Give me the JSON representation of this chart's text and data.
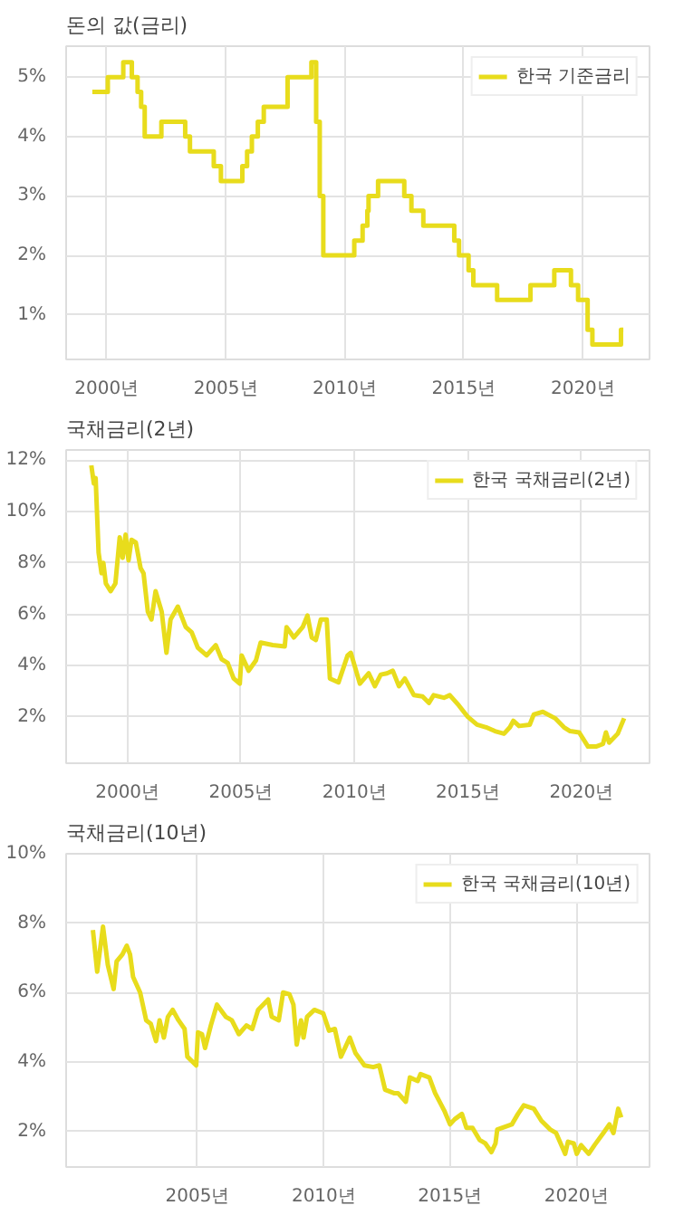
{
  "chart_data": [
    {
      "type": "step",
      "title": "돈의 값(금리)",
      "legend": "top right",
      "grid": true,
      "marker": "none",
      "line_style": "solid",
      "xlim": [
        1998.3,
        2022.8
      ],
      "ylim": [
        0.25,
        5.52
      ],
      "xticks": [
        {
          "value": 2000,
          "label": "2000년"
        },
        {
          "value": 2005,
          "label": "2005년"
        },
        {
          "value": 2010,
          "label": "2010년"
        },
        {
          "value": 2015,
          "label": "2015년"
        },
        {
          "value": 2020,
          "label": "2020년"
        }
      ],
      "yticks": [
        {
          "value": 1,
          "label": "1%"
        },
        {
          "value": 2,
          "label": "2%"
        },
        {
          "value": 3,
          "label": "3%"
        },
        {
          "value": 4,
          "label": "4%"
        },
        {
          "value": 5,
          "label": "5%"
        }
      ],
      "series": [
        {
          "name": "한국 기준금리",
          "color": "#e8dc1c",
          "x": [
            1999.4,
            2000.05,
            2000.7,
            2001.06,
            2001.3,
            2001.45,
            2001.6,
            2002.3,
            2003.3,
            2003.5,
            2004.5,
            2004.8,
            2005.7,
            2005.9,
            2006.1,
            2006.35,
            2006.6,
            2007.6,
            2008.6,
            2008.8,
            2008.95,
            2009.1,
            2010.4,
            2010.75,
            2010.95,
            2011.0,
            2011.4,
            2012.5,
            2012.8,
            2013.3,
            2014.6,
            2014.8,
            2015.2,
            2015.4,
            2016.4,
            2017.8,
            2018.8,
            2019.5,
            2019.8,
            2020.2,
            2020.4,
            2021.6,
            2021.7
          ],
          "values": [
            4.75,
            5.0,
            5.25,
            5.0,
            4.75,
            4.5,
            4.0,
            4.25,
            4.0,
            3.75,
            3.5,
            3.25,
            3.5,
            3.75,
            4.0,
            4.25,
            4.5,
            5.0,
            5.25,
            4.25,
            3.0,
            2.0,
            2.25,
            2.5,
            2.75,
            3.0,
            3.25,
            3.0,
            2.75,
            2.5,
            2.25,
            2.0,
            1.75,
            1.5,
            1.25,
            1.5,
            1.75,
            1.5,
            1.25,
            0.75,
            0.5,
            0.75,
            0.75
          ]
        }
      ]
    },
    {
      "type": "line",
      "title": "국채금리(2년)",
      "legend": "top right",
      "grid": true,
      "marker": "none",
      "line_style": "solid",
      "xlim": [
        1997.3,
        2023.0
      ],
      "ylim": [
        0.2,
        12.4
      ],
      "xticks": [
        {
          "value": 2000,
          "label": "2000년"
        },
        {
          "value": 2005,
          "label": "2005년"
        },
        {
          "value": 2010,
          "label": "2010년"
        },
        {
          "value": 2015,
          "label": "2015년"
        },
        {
          "value": 2020,
          "label": "2020년"
        }
      ],
      "yticks": [
        {
          "value": 2,
          "label": "2%"
        },
        {
          "value": 4,
          "label": "4%"
        },
        {
          "value": 6,
          "label": "6%"
        },
        {
          "value": 8,
          "label": "8%"
        },
        {
          "value": 10,
          "label": "10%"
        },
        {
          "value": 12,
          "label": "12%"
        }
      ],
      "series": [
        {
          "name": "한국 국채금리(2년)",
          "color": "#e8dc1c",
          "x": [
            1998.41,
            1998.52,
            1998.6,
            1998.73,
            1998.86,
            1998.94,
            1999.05,
            1999.26,
            1999.47,
            1999.66,
            1999.79,
            1999.92,
            2000.05,
            2000.18,
            2000.37,
            2000.58,
            2000.71,
            2000.9,
            2001.06,
            2001.24,
            2001.51,
            2001.72,
            2001.9,
            2002.22,
            2002.57,
            2002.83,
            2003.1,
            2003.49,
            2003.89,
            2004.15,
            2004.42,
            2004.68,
            2004.95,
            2005.03,
            2005.34,
            2005.66,
            2005.87,
            2006.4,
            2006.93,
            2007.01,
            2007.33,
            2007.72,
            2007.93,
            2008.12,
            2008.3,
            2008.52,
            2008.78,
            2008.92,
            2009.3,
            2009.7,
            2009.84,
            2010.24,
            2010.63,
            2010.9,
            2011.16,
            2011.43,
            2011.69,
            2011.96,
            2012.22,
            2012.62,
            2013.0,
            2013.28,
            2013.49,
            2013.94,
            2014.2,
            2014.6,
            2015.0,
            2015.4,
            2015.8,
            2016.19,
            2016.59,
            2016.85,
            2017.0,
            2017.25,
            2017.72,
            2017.9,
            2018.3,
            2018.84,
            2019.23,
            2019.5,
            2019.9,
            2020.29,
            2020.64,
            2020.95,
            2021.08,
            2021.22,
            2021.6,
            2021.88
          ],
          "values": [
            11.8,
            11.1,
            11.3,
            8.4,
            7.6,
            8.0,
            7.2,
            6.9,
            7.2,
            9.0,
            8.2,
            9.1,
            8.1,
            8.9,
            8.8,
            7.8,
            7.6,
            6.1,
            5.8,
            6.9,
            6.1,
            4.5,
            5.8,
            6.3,
            5.5,
            5.3,
            4.7,
            4.4,
            4.8,
            4.25,
            4.1,
            3.5,
            3.3,
            4.4,
            3.8,
            4.2,
            4.9,
            4.8,
            4.75,
            5.5,
            5.1,
            5.5,
            5.95,
            5.1,
            5.0,
            5.8,
            5.8,
            3.5,
            3.35,
            4.4,
            4.5,
            3.3,
            3.7,
            3.2,
            3.65,
            3.7,
            3.8,
            3.2,
            3.5,
            2.85,
            2.8,
            2.55,
            2.85,
            2.75,
            2.85,
            2.45,
            2.0,
            1.7,
            1.6,
            1.45,
            1.35,
            1.6,
            1.85,
            1.65,
            1.7,
            2.1,
            2.2,
            1.95,
            1.6,
            1.45,
            1.4,
            0.85,
            0.85,
            0.95,
            1.4,
            1.0,
            1.35,
            1.95
          ]
        }
      ]
    },
    {
      "type": "line",
      "title": "국채금리(10년)",
      "legend": "top right",
      "grid": true,
      "marker": "none",
      "line_style": "solid",
      "xlim": [
        1999.8,
        2022.9
      ],
      "ylim": [
        0.97,
        10.0
      ],
      "xticks": [
        {
          "value": 2005,
          "label": "2005년"
        },
        {
          "value": 2010,
          "label": "2010년"
        },
        {
          "value": 2015,
          "label": "2015년"
        },
        {
          "value": 2020,
          "label": "2020년"
        }
      ],
      "yticks": [
        {
          "value": 2,
          "label": "2%"
        },
        {
          "value": 4,
          "label": "4%"
        },
        {
          "value": 6,
          "label": "6%"
        },
        {
          "value": 8,
          "label": "8%"
        },
        {
          "value": 10,
          "label": "10%"
        }
      ],
      "series": [
        {
          "name": "한국 국채금리(10년)",
          "color": "#e8dc1c",
          "x": [
            2000.86,
            2001.03,
            2001.26,
            2001.45,
            2001.68,
            2001.8,
            2002.03,
            2002.2,
            2002.33,
            2002.45,
            2002.73,
            2002.97,
            2003.15,
            2003.36,
            2003.5,
            2003.67,
            2003.83,
            2004.02,
            2004.25,
            2004.49,
            2004.6,
            2004.95,
            2005.02,
            2005.18,
            2005.3,
            2005.53,
            2005.77,
            2006.12,
            2006.36,
            2006.64,
            2006.94,
            2007.17,
            2007.4,
            2007.8,
            2007.94,
            2008.22,
            2008.39,
            2008.64,
            2008.8,
            2008.93,
            2009.1,
            2009.2,
            2009.34,
            2009.63,
            2009.98,
            2010.21,
            2010.44,
            2010.68,
            2010.84,
            2011.03,
            2011.26,
            2011.61,
            2011.96,
            2012.2,
            2012.43,
            2012.78,
            2012.94,
            2013.25,
            2013.41,
            2013.72,
            2013.83,
            2014.18,
            2014.41,
            2014.77,
            2015.0,
            2015.19,
            2015.47,
            2015.65,
            2015.89,
            2016.17,
            2016.4,
            2016.64,
            2016.8,
            2016.87,
            2017.45,
            2017.69,
            2017.92,
            2018.32,
            2018.62,
            2018.97,
            2019.2,
            2019.56,
            2019.67,
            2019.9,
            2020.02,
            2020.19,
            2020.49,
            2020.72,
            2021.07,
            2021.31,
            2021.47,
            2021.66,
            2021.78
          ],
          "values": [
            7.8,
            6.6,
            7.9,
            6.8,
            6.1,
            6.9,
            7.1,
            7.35,
            7.1,
            6.45,
            6.0,
            5.2,
            5.1,
            4.6,
            5.2,
            4.7,
            5.3,
            5.5,
            5.2,
            4.95,
            4.15,
            3.9,
            4.85,
            4.8,
            4.4,
            5.05,
            5.65,
            5.3,
            5.2,
            4.8,
            5.05,
            4.95,
            5.5,
            5.8,
            5.3,
            5.2,
            6.0,
            5.95,
            5.65,
            4.5,
            5.2,
            4.7,
            5.3,
            5.5,
            5.4,
            4.9,
            4.95,
            4.15,
            4.4,
            4.7,
            4.25,
            3.9,
            3.85,
            3.9,
            3.2,
            3.1,
            3.1,
            2.85,
            3.55,
            3.45,
            3.65,
            3.55,
            3.1,
            2.6,
            2.2,
            2.35,
            2.5,
            2.1,
            2.1,
            1.75,
            1.65,
            1.4,
            1.65,
            2.05,
            2.2,
            2.5,
            2.75,
            2.65,
            2.3,
            2.05,
            1.95,
            1.35,
            1.7,
            1.65,
            1.35,
            1.6,
            1.35,
            1.6,
            1.95,
            2.2,
            1.95,
            2.65,
            2.4
          ]
        }
      ]
    }
  ]
}
